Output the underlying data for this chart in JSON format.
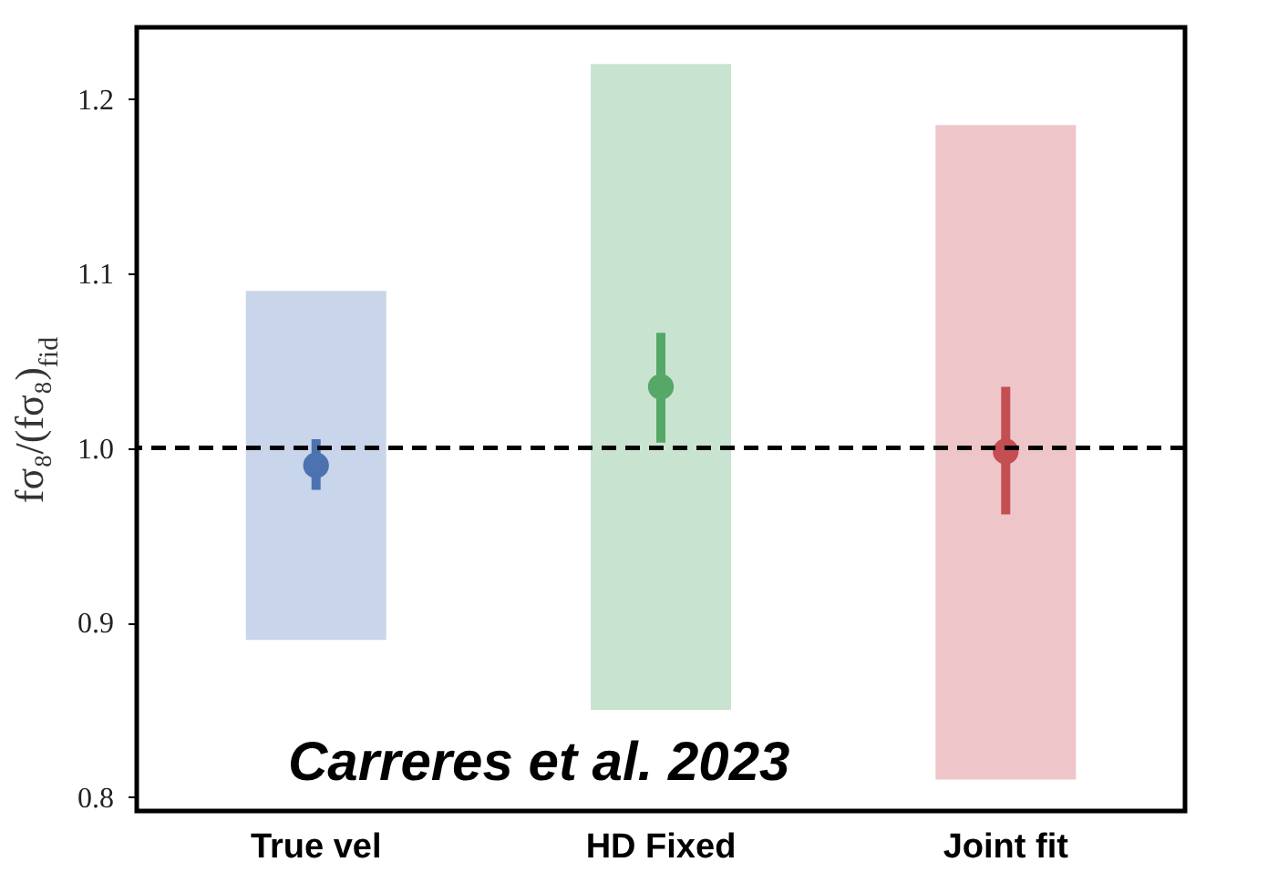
{
  "chart_data": {
    "type": "scatter",
    "ylabel": "fσ₈/(fσ₈)$_{fid}$",
    "categories": [
      "True vel",
      "HD Fixed",
      "Joint fit"
    ],
    "series": [
      {
        "type": "bar",
        "colors": [
          "#c9d5ea",
          "#c8e4d0",
          "#eec6c9"
        ],
        "base": [
          0.89,
          0.85,
          0.81
        ],
        "values": [
          0.2,
          0.37,
          0.375
        ]
      },
      {
        "colors": [
          "#4c72b0",
          "#55a868",
          "#c44e52"
        ],
        "values": [
          0.99,
          1.035,
          0.998
        ],
        "errors": [
          [
            0.976,
            1.005
          ],
          [
            1.003,
            1.066
          ],
          [
            0.962,
            1.035
          ]
        ]
      }
    ],
    "ylim": [
      0.792,
      1.241
    ],
    "yticks": [
      0.8,
      0.9,
      {
        "value": 1.0,
        "label": "1.0"
      },
      1.1,
      1.2
    ],
    "grid": false,
    "marker": "circle",
    "ref_lines": [
      {
        "axis": "y",
        "value": 1.0,
        "color": "#000000",
        "line_style": "dashed"
      }
    ],
    "annotations": [
      "Carreres et al. 2023"
    ]
  }
}
